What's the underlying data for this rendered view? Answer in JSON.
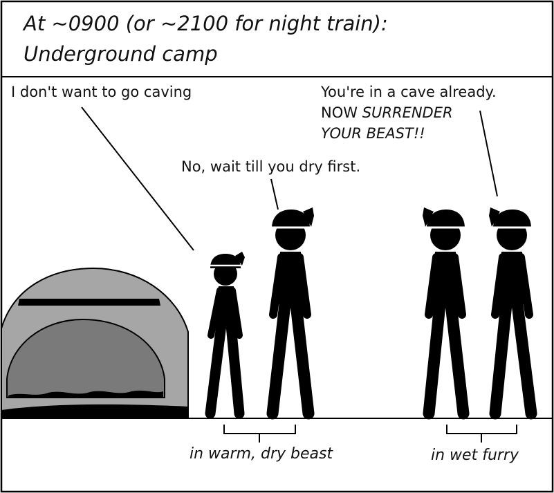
{
  "caption": {
    "line1": "At ~0900 (or ~2100 for night train):",
    "line2": "Underground camp"
  },
  "speech": {
    "child": "I don't want to go caving",
    "parent": "No, wait till you dry first.",
    "right_line1": "You're in a cave already.",
    "right_line2_plain": "NOW ",
    "right_line2_italic": "SURRENDER",
    "right_line3": "YOUR BEAST!!"
  },
  "labels": {
    "left_group": "in warm, dry beast",
    "right_group": "in wet furry"
  },
  "colors": {
    "ink": "#000000",
    "tent_outer": "#a6a6a6",
    "tent_inner": "#7a7a7a",
    "background": "#ffffff"
  },
  "icons": {
    "figures": "stick-figure-with-helmet",
    "tent": "dome-tent"
  }
}
